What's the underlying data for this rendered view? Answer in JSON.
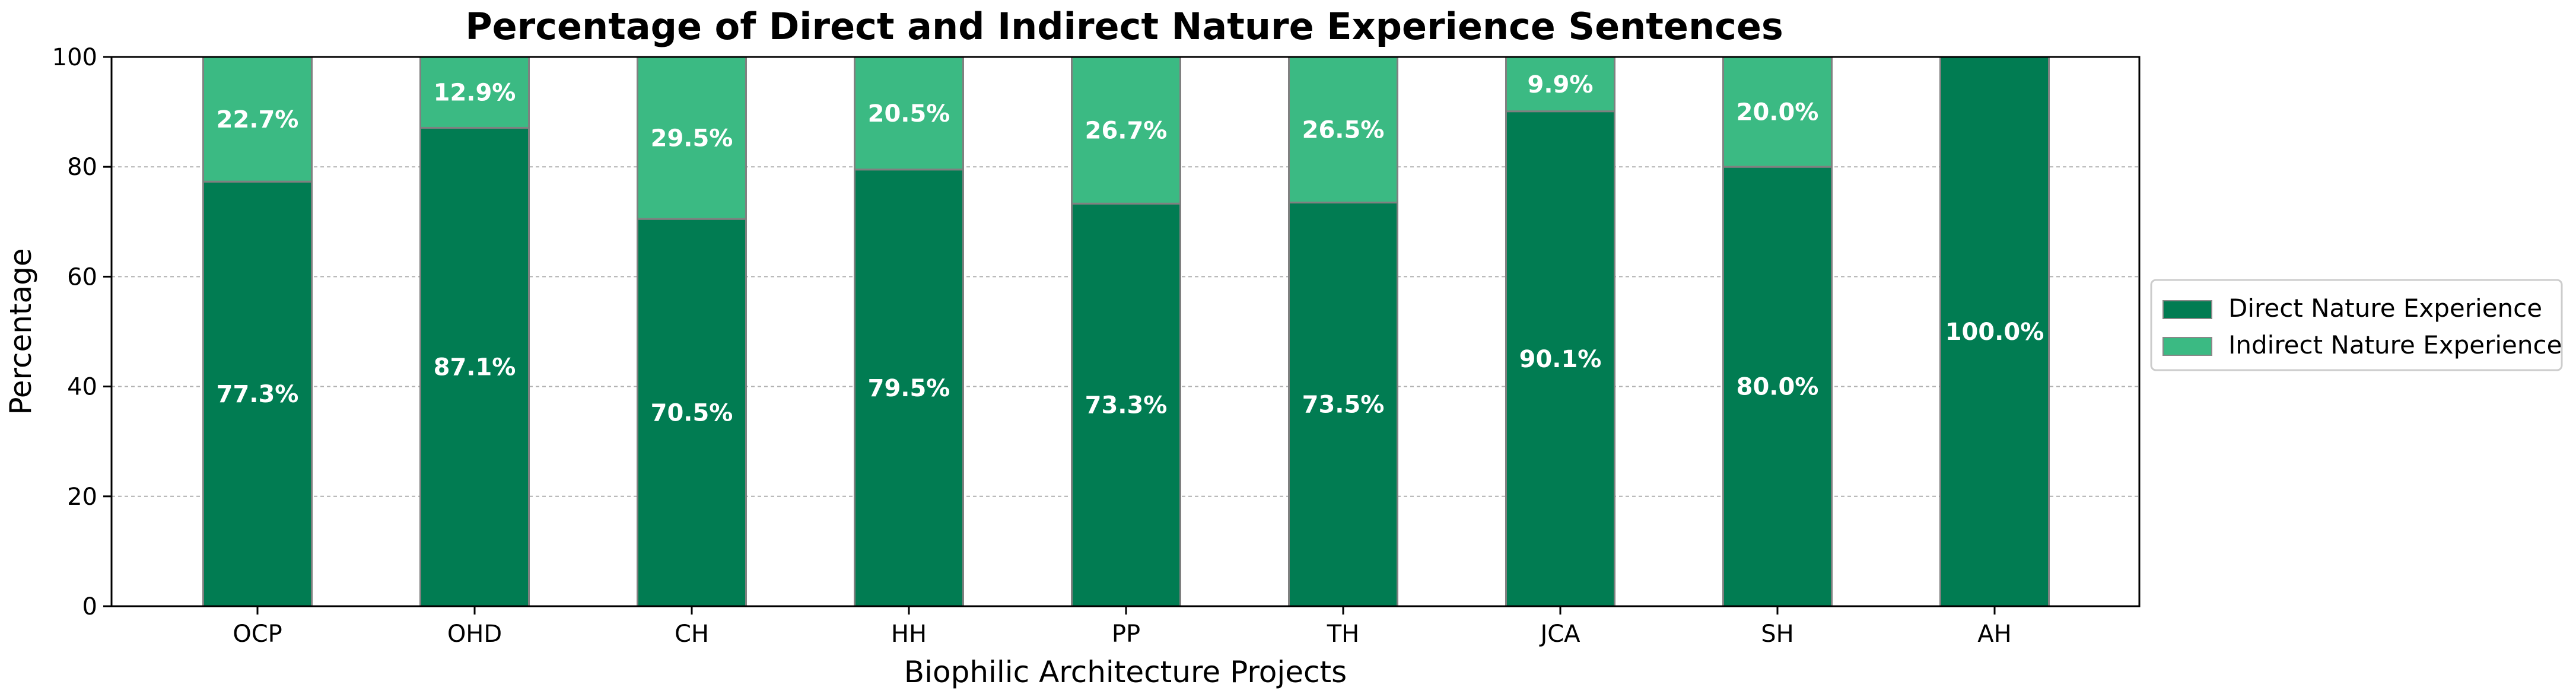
{
  "chart_data": {
    "type": "bar",
    "stacked": true,
    "title": "Percentage of Direct and Indirect Nature Experience Sentences",
    "xlabel": "Biophilic Architecture Projects",
    "ylabel": "Percentage",
    "ylim": [
      0,
      100
    ],
    "yticks": [
      0,
      20,
      40,
      60,
      80,
      100
    ],
    "grid": "y-dashed",
    "legend_position": "right",
    "categories": [
      "OCP",
      "OHD",
      "CH",
      "HH",
      "PP",
      "TH",
      "JCA",
      "SH",
      "AH"
    ],
    "series": [
      {
        "name": "Direct Nature Experience",
        "color": "#017c52",
        "values": [
          77.3,
          87.1,
          70.5,
          79.5,
          73.3,
          73.5,
          90.1,
          80.0,
          100.0
        ],
        "labels": [
          "77.3%",
          "87.1%",
          "70.5%",
          "79.5%",
          "73.3%",
          "73.5%",
          "90.1%",
          "80.0%",
          "100.0%"
        ]
      },
      {
        "name": "Indirect Nature Experience",
        "color": "#3bba83",
        "values": [
          22.7,
          12.9,
          29.5,
          20.5,
          26.7,
          26.5,
          9.9,
          20.0,
          0.0
        ],
        "labels": [
          "22.7%",
          "12.9%",
          "29.5%",
          "20.5%",
          "26.7%",
          "26.5%",
          "9.9%",
          "20.0%",
          ""
        ]
      }
    ]
  }
}
